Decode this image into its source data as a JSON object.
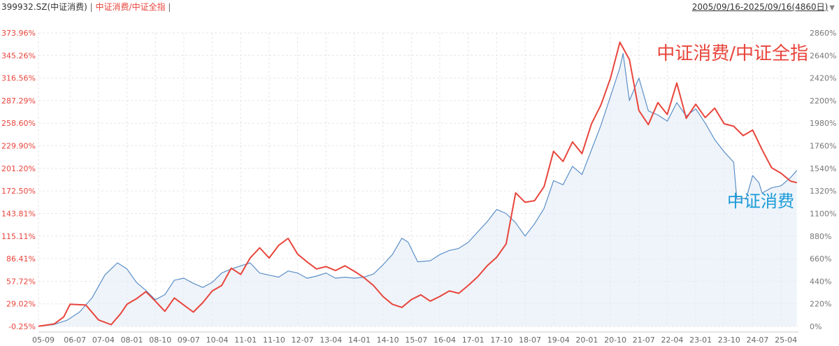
{
  "header": {
    "code": "399932.SZ(中证消费)",
    "sep": "|",
    "ratio_label": "中证消费/中证全指",
    "sep2": "|",
    "range_text": "2005/09/16-2025/09/16(4860日)",
    "dropdown_icon": "triangle-down-icon"
  },
  "colors": {
    "ratio_line": "#e8453c",
    "index_line": "#5b8fc7",
    "index_fill": "#e4edf7",
    "left_tick": "#e8453c",
    "right_tick": "#777777",
    "grid": "#e6e6e6",
    "annot_blue": "#1a9bd7"
  },
  "chart_data": {
    "type": "line",
    "x_ticks": [
      "05-09",
      "06-07",
      "07-04",
      "08-01",
      "08-10",
      "09-07",
      "10-04",
      "11-01",
      "11-10",
      "12-07",
      "13-04",
      "14-01",
      "14-10",
      "15-07",
      "16-04",
      "17-01",
      "17-10",
      "18-07",
      "19-04",
      "20-01",
      "20-10",
      "21-07",
      "22-04",
      "23-01",
      "23-10",
      "24-07",
      "25-04"
    ],
    "left_axis": {
      "ticks": [
        "373.96%",
        "345.26%",
        "316.56%",
        "287.29%",
        "258.60%",
        "229.90%",
        "201.20%",
        "172.50%",
        "143.81%",
        "115.11%",
        "86.41%",
        "57.72%",
        "29.02%",
        "-0.25%"
      ],
      "ylim": [
        -0.25,
        373.96
      ]
    },
    "right_axis": {
      "ticks": [
        "2860%",
        "2640%",
        "2420%",
        "2200%",
        "1980%",
        "1760%",
        "1540%",
        "1320%",
        "1100%",
        "880%",
        "660%",
        "440%",
        "220%",
        "0%"
      ],
      "ylim": [
        0,
        2860
      ]
    },
    "series": [
      {
        "name": "中证消费/中证全指",
        "axis": "left",
        "x": [
          "2005-09",
          "2006-02",
          "2006-05",
          "2006-07",
          "2006-12",
          "2007-04",
          "2007-08",
          "2007-11",
          "2008-01",
          "2008-04",
          "2008-07",
          "2008-10",
          "2009-01",
          "2009-04",
          "2009-07",
          "2009-10",
          "2010-01",
          "2010-04",
          "2010-07",
          "2010-10",
          "2011-01",
          "2011-04",
          "2011-07",
          "2011-10",
          "2012-01",
          "2012-04",
          "2012-07",
          "2012-10",
          "2013-01",
          "2013-04",
          "2013-07",
          "2013-10",
          "2014-01",
          "2014-04",
          "2014-07",
          "2014-10",
          "2015-01",
          "2015-04",
          "2015-07",
          "2015-10",
          "2016-01",
          "2016-04",
          "2016-07",
          "2016-10",
          "2017-01",
          "2017-04",
          "2017-07",
          "2017-10",
          "2018-01",
          "2018-04",
          "2018-07",
          "2018-10",
          "2019-01",
          "2019-04",
          "2019-07",
          "2019-10",
          "2020-01",
          "2020-04",
          "2020-07",
          "2020-10",
          "2021-01",
          "2021-04",
          "2021-07",
          "2021-10",
          "2022-01",
          "2022-04",
          "2022-07",
          "2022-10",
          "2023-01",
          "2023-04",
          "2023-07",
          "2023-10",
          "2024-01",
          "2024-04",
          "2024-07",
          "2024-10",
          "2025-01",
          "2025-04",
          "2025-07",
          "2025-09"
        ],
        "values": [
          0,
          3,
          12,
          28,
          27,
          8,
          2,
          16,
          28,
          35,
          44,
          32,
          19,
          36,
          27,
          18,
          30,
          45,
          52,
          74,
          66,
          87,
          100,
          87,
          103,
          112,
          92,
          82,
          73,
          76,
          71,
          77,
          70,
          62,
          52,
          38,
          28,
          24,
          34,
          40,
          32,
          38,
          45,
          42,
          52,
          63,
          77,
          88,
          105,
          170,
          158,
          160,
          178,
          223,
          210,
          235,
          220,
          258,
          282,
          316,
          362,
          340,
          275,
          257,
          285,
          270,
          310,
          265,
          283,
          266,
          278,
          258,
          255,
          243,
          250,
          225,
          202,
          195,
          185,
          183
        ]
      },
      {
        "name": "中证消费",
        "axis": "right",
        "x": [
          "2005-09",
          "2006-02",
          "2006-06",
          "2006-10",
          "2007-02",
          "2007-06",
          "2007-10",
          "2008-01",
          "2008-04",
          "2008-07",
          "2008-10",
          "2009-01",
          "2009-04",
          "2009-07",
          "2009-10",
          "2010-01",
          "2010-04",
          "2010-07",
          "2010-10",
          "2011-01",
          "2011-04",
          "2011-07",
          "2011-10",
          "2012-01",
          "2012-04",
          "2012-07",
          "2012-10",
          "2013-01",
          "2013-04",
          "2013-07",
          "2013-10",
          "2014-01",
          "2014-04",
          "2014-07",
          "2014-10",
          "2015-01",
          "2015-04",
          "2015-06",
          "2015-09",
          "2016-01",
          "2016-04",
          "2016-07",
          "2016-10",
          "2017-01",
          "2017-04",
          "2017-07",
          "2017-10",
          "2018-01",
          "2018-04",
          "2018-07",
          "2018-10",
          "2019-01",
          "2019-04",
          "2019-07",
          "2019-10",
          "2020-01",
          "2020-04",
          "2020-07",
          "2020-10",
          "2021-01",
          "2021-02",
          "2021-04",
          "2021-07",
          "2021-10",
          "2022-01",
          "2022-04",
          "2022-07",
          "2022-10",
          "2023-01",
          "2023-04",
          "2023-07",
          "2023-10",
          "2024-01",
          "2024-02",
          "2024-05",
          "2024-07",
          "2024-09",
          "2024-10",
          "2025-01",
          "2025-04",
          "2025-07",
          "2025-09"
        ],
        "values": [
          0,
          20,
          60,
          140,
          280,
          500,
          620,
          560,
          430,
          350,
          260,
          310,
          450,
          470,
          420,
          380,
          430,
          520,
          560,
          590,
          620,
          520,
          500,
          480,
          540,
          520,
          470,
          490,
          520,
          470,
          480,
          470,
          480,
          510,
          600,
          700,
          860,
          820,
          630,
          640,
          700,
          740,
          760,
          820,
          920,
          1020,
          1140,
          1100,
          1010,
          880,
          1000,
          1150,
          1420,
          1380,
          1560,
          1480,
          1720,
          1960,
          2240,
          2520,
          2660,
          2200,
          2420,
          2100,
          2060,
          2000,
          2180,
          2050,
          2120,
          1980,
          1820,
          1700,
          1600,
          1240,
          1250,
          1470,
          1400,
          1300,
          1350,
          1370,
          1450,
          1520
        ]
      }
    ],
    "annotations": [
      "中证消费/中证全指",
      "中证消费"
    ]
  }
}
